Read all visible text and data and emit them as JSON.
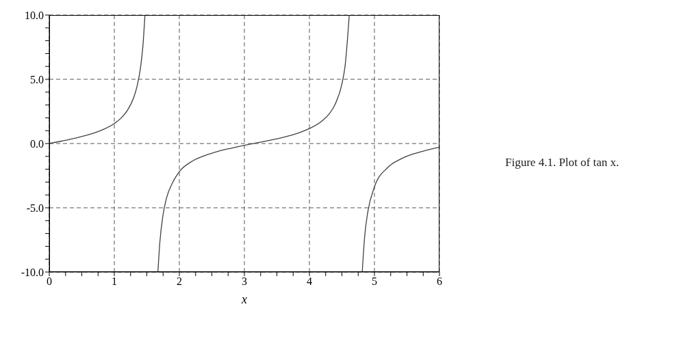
{
  "chart_data": {
    "type": "line",
    "xlabel": "x",
    "annotations": [
      "Figure 4.1.  Plot of tan x."
    ],
    "x": [
      0,
      0.2,
      0.4,
      0.6,
      0.8,
      1.0,
      1.1,
      1.2,
      1.3,
      1.35,
      1.4,
      1.44,
      1.4711,
      1.57,
      1.6705,
      1.7,
      1.75,
      1.8,
      1.9,
      2.0,
      2.2,
      2.4,
      2.6,
      2.8,
      3.0,
      3.2,
      3.4,
      3.6,
      3.8,
      4.0,
      4.2,
      4.3,
      4.4,
      4.5,
      4.55,
      4.6127,
      4.71,
      4.8122,
      4.85,
      4.9,
      5.0,
      5.2,
      5.4,
      5.6,
      5.8,
      6.0
    ],
    "series": [
      {
        "color": "#404040",
        "values": [
          0,
          0.2,
          0.42,
          0.68,
          1.03,
          1.56,
          1.96,
          2.57,
          3.6,
          4.46,
          5.8,
          7.6,
          10,
          null,
          -10,
          -7.7,
          -5.52,
          -4.29,
          -3.01,
          -2.19,
          -1.37,
          -0.92,
          -0.6,
          -0.36,
          -0.14,
          0.06,
          0.26,
          0.49,
          0.77,
          1.16,
          1.78,
          2.28,
          3.1,
          4.64,
          6.1,
          10,
          null,
          -10,
          -7.22,
          -5.27,
          -3.38,
          -1.89,
          -1.22,
          -0.81,
          -0.53,
          -0.29
        ]
      }
    ],
    "xlim": [
      0,
      6
    ],
    "xticks": [
      0,
      {
        "value": 0.25,
        "label": null
      },
      {
        "value": 0.5,
        "label": null
      },
      {
        "value": 0.75,
        "label": null
      },
      1,
      {
        "value": 1.25,
        "label": null
      },
      {
        "value": 1.5,
        "label": null
      },
      {
        "value": 1.75,
        "label": null
      },
      2,
      {
        "value": 2.25,
        "label": null
      },
      {
        "value": 2.5,
        "label": null
      },
      {
        "value": 2.75,
        "label": null
      },
      3,
      {
        "value": 3.25,
        "label": null
      },
      {
        "value": 3.5,
        "label": null
      },
      {
        "value": 3.75,
        "label": null
      },
      4,
      {
        "value": 4.25,
        "label": null
      },
      {
        "value": 4.5,
        "label": null
      },
      {
        "value": 4.75,
        "label": null
      },
      5,
      {
        "value": 5.25,
        "label": null
      },
      {
        "value": 5.5,
        "label": null
      },
      {
        "value": 5.75,
        "label": null
      },
      6
    ],
    "ylim": [
      -10,
      10
    ],
    "yticks": [
      {
        "value": -10,
        "label": "-10.0"
      },
      {
        "value": -9,
        "label": null
      },
      {
        "value": -8,
        "label": null
      },
      {
        "value": -7,
        "label": null
      },
      {
        "value": -6,
        "label": null
      },
      {
        "value": -5,
        "label": "-5.0"
      },
      {
        "value": -4,
        "label": null
      },
      {
        "value": -3,
        "label": null
      },
      {
        "value": -2,
        "label": null
      },
      {
        "value": -1,
        "label": null
      },
      {
        "value": 0,
        "label": "0.0"
      },
      {
        "value": 1,
        "label": null
      },
      {
        "value": 2,
        "label": null
      },
      {
        "value": 3,
        "label": null
      },
      {
        "value": 4,
        "label": null
      },
      {
        "value": 5,
        "label": "5.0"
      },
      {
        "value": 6,
        "label": null
      },
      {
        "value": 7,
        "label": null
      },
      {
        "value": 8,
        "label": null
      },
      {
        "value": 9,
        "label": null
      },
      {
        "value": 10,
        "label": "10.0"
      }
    ],
    "grid": true,
    "legend": false,
    "marker": "none",
    "line_style": "solid"
  }
}
